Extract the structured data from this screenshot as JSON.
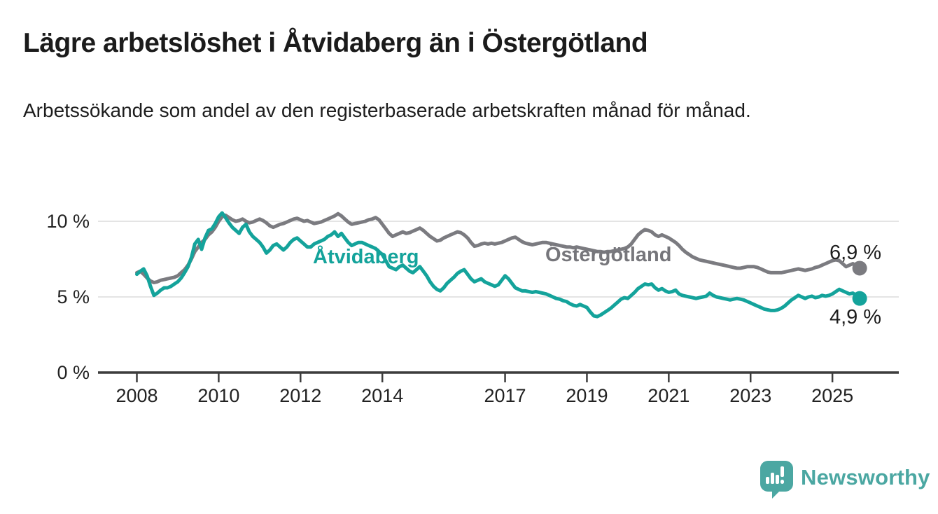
{
  "header": {
    "title": "Lägre arbetslöshet i Åtvidaberg än i Östergötland",
    "subtitle": "Arbetssökande som andel av den registerbaserade arbetskraften månad för månad."
  },
  "footer": {
    "brand": "Newsworthy",
    "brand_color": "#4ba7a2"
  },
  "colors": {
    "accent_teal": "#14a39b",
    "line_gray": "#7b7b80",
    "grid": "#dcdcdc",
    "axis": "#3c3c3c",
    "text": "#1d1d1d"
  },
  "chart_data": {
    "type": "line",
    "unit": "%",
    "frequency": "monthly",
    "x_range": [
      2008.0,
      2025.667
    ],
    "ylim": [
      0,
      11.5
    ],
    "grid": "horizontal",
    "x_ticks": [
      2008,
      2010,
      2012,
      2014,
      2017,
      2019,
      2021,
      2023,
      2025
    ],
    "y_ticks": [
      {
        "value": 10,
        "label": "10 %"
      },
      {
        "value": 5,
        "label": "5 %"
      },
      {
        "value": 0,
        "label": "0 %"
      }
    ],
    "series": [
      {
        "name": "Östergötland",
        "color": "#7b7b80",
        "label_color": "#76767b",
        "start_year": 2008,
        "end_label": "6,9 %",
        "end_value": 6.9,
        "end_label_position": "above",
        "values": [
          6.6,
          6.7,
          6.5,
          6.25,
          6.05,
          5.95,
          6.0,
          6.1,
          6.15,
          6.2,
          6.25,
          6.3,
          6.4,
          6.6,
          6.8,
          7.1,
          7.5,
          8.0,
          8.3,
          8.6,
          8.8,
          9.1,
          9.3,
          9.6,
          10.0,
          10.3,
          10.4,
          10.25,
          10.1,
          10.0,
          10.05,
          10.15,
          10.0,
          9.9,
          9.95,
          10.05,
          10.15,
          10.05,
          9.9,
          9.7,
          9.6,
          9.7,
          9.8,
          9.85,
          9.95,
          10.05,
          10.15,
          10.2,
          10.1,
          10.0,
          10.05,
          9.95,
          9.85,
          9.9,
          9.95,
          10.05,
          10.15,
          10.25,
          10.35,
          10.5,
          10.35,
          10.15,
          9.95,
          9.8,
          9.85,
          9.9,
          9.95,
          10.0,
          10.1,
          10.15,
          10.25,
          10.1,
          9.8,
          9.5,
          9.2,
          9.0,
          9.1,
          9.2,
          9.3,
          9.2,
          9.25,
          9.35,
          9.45,
          9.55,
          9.4,
          9.2,
          9.0,
          8.85,
          8.7,
          8.75,
          8.9,
          9.0,
          9.1,
          9.2,
          9.3,
          9.25,
          9.1,
          8.9,
          8.6,
          8.35,
          8.4,
          8.5,
          8.55,
          8.5,
          8.55,
          8.5,
          8.55,
          8.6,
          8.7,
          8.8,
          8.9,
          8.95,
          8.8,
          8.65,
          8.55,
          8.5,
          8.45,
          8.5,
          8.55,
          8.6,
          8.6,
          8.55,
          8.5,
          8.45,
          8.4,
          8.35,
          8.3,
          8.3,
          8.25,
          8.3,
          8.25,
          8.2,
          8.15,
          8.1,
          8.05,
          8.0,
          8.0,
          7.95,
          8.0,
          8.0,
          8.05,
          8.1,
          8.15,
          8.2,
          8.3,
          8.5,
          8.8,
          9.1,
          9.3,
          9.45,
          9.4,
          9.3,
          9.1,
          9.0,
          9.1,
          9.0,
          8.9,
          8.75,
          8.6,
          8.4,
          8.15,
          7.95,
          7.8,
          7.65,
          7.55,
          7.45,
          7.4,
          7.35,
          7.3,
          7.25,
          7.2,
          7.15,
          7.1,
          7.05,
          7.0,
          6.95,
          6.9,
          6.9,
          6.95,
          7.0,
          7.0,
          7.0,
          6.95,
          6.85,
          6.75,
          6.65,
          6.6,
          6.6,
          6.6,
          6.6,
          6.65,
          6.7,
          6.75,
          6.8,
          6.85,
          6.8,
          6.75,
          6.8,
          6.85,
          6.95,
          7.0,
          7.1,
          7.2,
          7.3,
          7.4,
          7.45,
          7.4,
          7.2,
          7.0,
          7.1,
          7.2,
          7.05,
          6.9
        ]
      },
      {
        "name": "Åtvidaberg",
        "color": "#14a39b",
        "label_color": "#14a39b",
        "start_year": 2008,
        "end_label": "4,9 %",
        "end_value": 4.9,
        "end_label_position": "below",
        "values": [
          6.5,
          6.7,
          6.85,
          6.4,
          5.7,
          5.1,
          5.25,
          5.45,
          5.6,
          5.6,
          5.7,
          5.85,
          6.0,
          6.25,
          6.6,
          7.0,
          7.6,
          8.5,
          8.8,
          8.15,
          8.9,
          9.4,
          9.5,
          9.85,
          10.3,
          10.55,
          10.25,
          9.9,
          9.6,
          9.4,
          9.2,
          9.6,
          9.8,
          9.3,
          9.0,
          8.8,
          8.6,
          8.3,
          7.9,
          8.1,
          8.4,
          8.5,
          8.3,
          8.1,
          8.3,
          8.6,
          8.8,
          8.9,
          8.7,
          8.5,
          8.3,
          8.3,
          8.5,
          8.6,
          8.7,
          8.8,
          9.0,
          9.1,
          9.3,
          9.0,
          9.2,
          8.9,
          8.6,
          8.4,
          8.5,
          8.6,
          8.6,
          8.5,
          8.4,
          8.3,
          8.2,
          8.0,
          7.8,
          7.4,
          7.0,
          6.9,
          6.8,
          7.0,
          7.1,
          6.9,
          6.7,
          6.6,
          6.8,
          7.0,
          6.7,
          6.4,
          6.0,
          5.7,
          5.5,
          5.4,
          5.6,
          5.9,
          6.1,
          6.3,
          6.55,
          6.7,
          6.8,
          6.5,
          6.2,
          6.0,
          6.1,
          6.2,
          6.0,
          5.9,
          5.8,
          5.7,
          5.8,
          6.1,
          6.4,
          6.2,
          5.9,
          5.6,
          5.5,
          5.4,
          5.4,
          5.35,
          5.3,
          5.35,
          5.3,
          5.25,
          5.2,
          5.1,
          5.0,
          4.9,
          4.85,
          4.75,
          4.7,
          4.55,
          4.45,
          4.4,
          4.5,
          4.4,
          4.3,
          4.0,
          3.75,
          3.7,
          3.8,
          3.95,
          4.1,
          4.25,
          4.45,
          4.65,
          4.85,
          4.95,
          4.9,
          5.1,
          5.3,
          5.55,
          5.7,
          5.85,
          5.8,
          5.85,
          5.6,
          5.45,
          5.55,
          5.4,
          5.3,
          5.35,
          5.45,
          5.2,
          5.1,
          5.05,
          5.0,
          4.95,
          4.9,
          4.95,
          5.0,
          5.05,
          5.25,
          5.1,
          5.0,
          4.95,
          4.9,
          4.85,
          4.8,
          4.85,
          4.9,
          4.85,
          4.8,
          4.7,
          4.6,
          4.5,
          4.4,
          4.3,
          4.2,
          4.15,
          4.1,
          4.1,
          4.15,
          4.25,
          4.4,
          4.6,
          4.8,
          4.95,
          5.1,
          5.0,
          4.9,
          5.0,
          5.05,
          4.95,
          5.0,
          5.1,
          5.05,
          5.1,
          5.2,
          5.35,
          5.5,
          5.4,
          5.3,
          5.2,
          5.25,
          5.1,
          4.9
        ]
      }
    ]
  }
}
